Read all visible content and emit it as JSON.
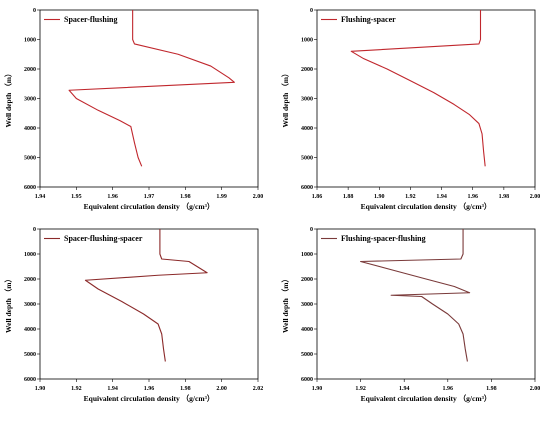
{
  "chart_data": [
    {
      "type": "line",
      "ylabel": "Well depth （m）",
      "xlabel": "Equivalent circulation density （g/cm³）",
      "xlim": [
        1.94,
        2.0
      ],
      "xticks": [
        "1.94",
        "1.95",
        "1.96",
        "1.97",
        "1.98",
        "1.99",
        "2.00"
      ],
      "ylim": [
        0,
        6000
      ],
      "yticks": [
        "0",
        "1000",
        "2000",
        "3000",
        "4000",
        "5000",
        "6000"
      ],
      "y_inverted": true,
      "legend_position": "top-left",
      "series": [
        {
          "name": "Spacer-flushing",
          "color": "#c0272d",
          "x": [
            1.9655,
            1.9655,
            1.966,
            1.978,
            1.987,
            1.992,
            1.9935,
            1.948,
            1.95,
            1.956,
            1.962,
            1.965,
            1.966,
            1.967,
            1.968
          ],
          "y": [
            0,
            1000,
            1150,
            1500,
            1900,
            2300,
            2450,
            2720,
            3000,
            3400,
            3750,
            3950,
            4500,
            5000,
            5300
          ]
        }
      ]
    },
    {
      "type": "line",
      "ylabel": "Well depth （m）",
      "xlabel": "Equivalent circulation density （g/cm³）",
      "xlim": [
        1.86,
        2.0
      ],
      "xticks": [
        "1.86",
        "1.88",
        "1.90",
        "1.92",
        "1.94",
        "1.96",
        "1.98",
        "2.00"
      ],
      "ylim": [
        0,
        6000
      ],
      "yticks": [
        "0",
        "1000",
        "2000",
        "3000",
        "4000",
        "5000",
        "6000"
      ],
      "y_inverted": true,
      "legend_position": "top-left",
      "series": [
        {
          "name": "Flushing-spacer",
          "color": "#c0272d",
          "x": [
            1.965,
            1.965,
            1.964,
            1.882,
            1.89,
            1.905,
            1.92,
            1.935,
            1.948,
            1.958,
            1.964,
            1.966,
            1.967,
            1.968
          ],
          "y": [
            0,
            1000,
            1150,
            1400,
            1650,
            2000,
            2400,
            2800,
            3200,
            3550,
            3850,
            4200,
            4800,
            5300
          ]
        }
      ]
    },
    {
      "type": "line",
      "ylabel": "Well depth （m）",
      "xlabel": "Equivalent circulation density （g/cm³）",
      "xlim": [
        1.9,
        2.02
      ],
      "xticks": [
        "1.90",
        "1.92",
        "1.94",
        "1.96",
        "1.98",
        "2.00",
        "2.02"
      ],
      "ylim": [
        0,
        6000
      ],
      "yticks": [
        "0",
        "1000",
        "2000",
        "3000",
        "4000",
        "5000",
        "6000"
      ],
      "y_inverted": true,
      "legend_position": "top-left",
      "series": [
        {
          "name": "Spacer-flushing-spacer",
          "color": "#8b2a2a",
          "x": [
            1.966,
            1.966,
            1.967,
            1.982,
            1.992,
            1.965,
            1.925,
            1.932,
            1.945,
            1.957,
            1.965,
            1.967,
            1.968,
            1.969
          ],
          "y": [
            0,
            1000,
            1200,
            1300,
            1750,
            1850,
            2050,
            2400,
            2900,
            3400,
            3800,
            4200,
            4800,
            5300
          ]
        }
      ]
    },
    {
      "type": "line",
      "ylabel": "Well depth （m）",
      "xlabel": "Equivalent circulation density （g/cm³）",
      "xlim": [
        1.9,
        2.0
      ],
      "xticks": [
        "1.90",
        "1.92",
        "1.94",
        "1.96",
        "1.98",
        "2.00"
      ],
      "ylim": [
        0,
        6000
      ],
      "yticks": [
        "0",
        "1000",
        "2000",
        "3000",
        "4000",
        "5000",
        "6000"
      ],
      "y_inverted": true,
      "legend_position": "top-left",
      "series": [
        {
          "name": "Flushing-spacer-flushing",
          "color": "#7a3a3a",
          "x": [
            1.967,
            1.967,
            1.966,
            1.92,
            1.935,
            1.95,
            1.963,
            1.97,
            1.934,
            1.948,
            1.953,
            1.96,
            1.965,
            1.967,
            1.968,
            1.969
          ],
          "y": [
            0,
            1000,
            1200,
            1300,
            1650,
            2000,
            2300,
            2550,
            2650,
            2700,
            3000,
            3400,
            3800,
            4200,
            4800,
            5300
          ]
        }
      ]
    }
  ]
}
